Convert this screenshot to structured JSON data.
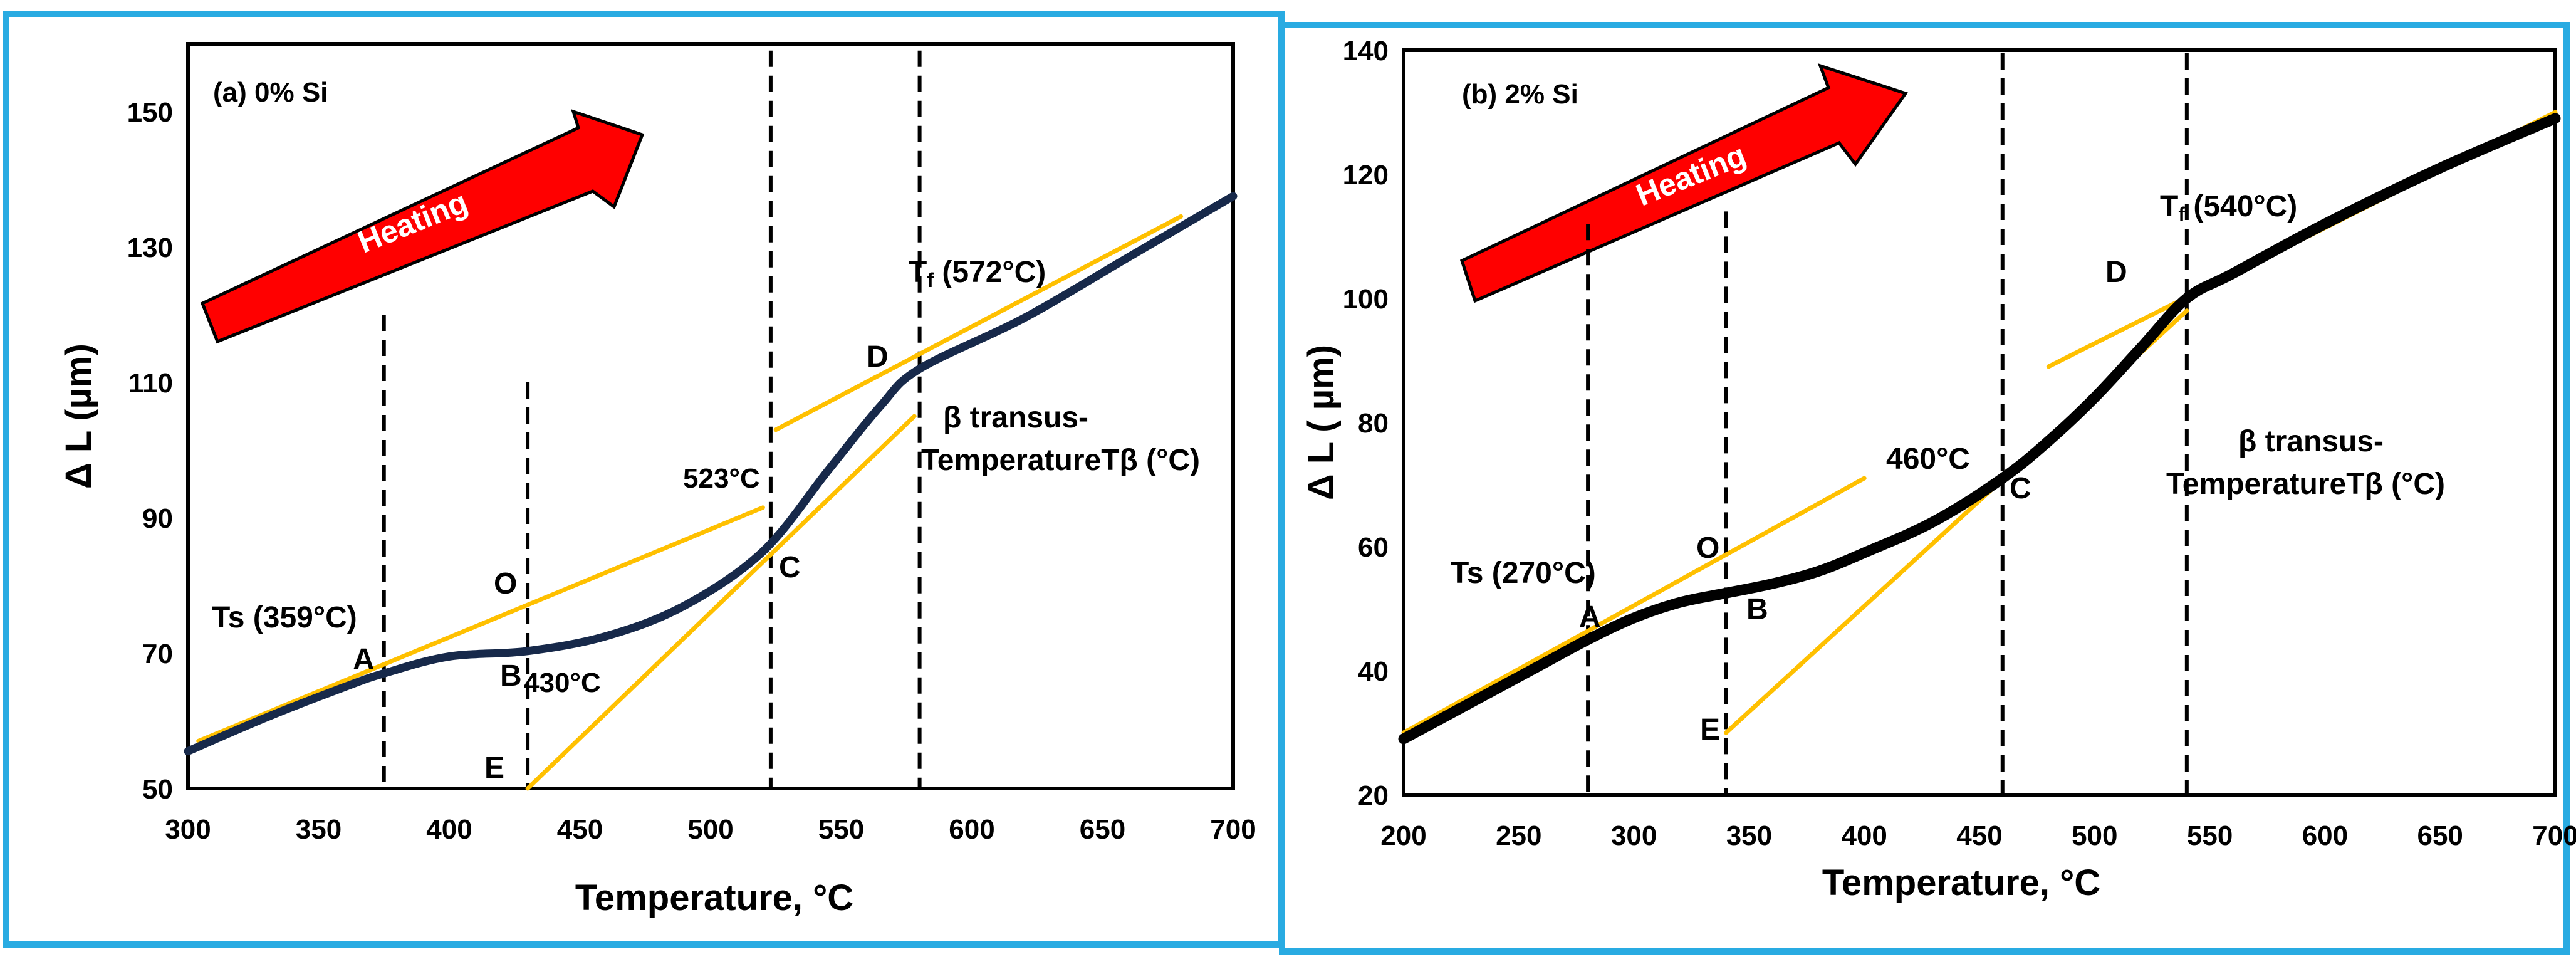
{
  "colors": {
    "frame": "#29abe2",
    "curve_a": "#17294a",
    "curve_b": "#000000",
    "tangent": "#ffc000",
    "arrow": "#ff0000"
  },
  "chart_data": [
    {
      "type": "line",
      "panel_label": "(a) 0% Si",
      "xlabel": "Temperature, °C",
      "ylabel": "Δ L (µm)",
      "xlim": [
        300,
        700
      ],
      "ylim": [
        50,
        160
      ],
      "xticks": [
        "300",
        "350",
        "400",
        "450",
        "500",
        "550",
        "600",
        "650",
        "700"
      ],
      "yticks": [
        "50",
        "70",
        "90",
        "110",
        "130",
        "150"
      ],
      "arrow_label": "Heating",
      "series": [
        {
          "name": "dilatation curve",
          "x": [
            300,
            330,
            360,
            375,
            400,
            430,
            460,
            490,
            520,
            545,
            565,
            580,
            620,
            660,
            700
          ],
          "y": [
            55.5,
            60.5,
            65,
            67,
            69.5,
            70.3,
            72.5,
            77,
            85,
            97,
            106.5,
            112,
            119.5,
            128.5,
            137.5
          ]
        }
      ],
      "tangents": [
        {
          "from": [
            304,
            57
          ],
          "to": [
            520,
            91.5
          ]
        },
        {
          "from": [
            430,
            50
          ],
          "to": [
            578,
            105
          ]
        },
        {
          "from": [
            525,
            103
          ],
          "to": [
            680,
            134.5
          ]
        }
      ],
      "vertical_lines": [
        375,
        430,
        523,
        580
      ],
      "points": [
        {
          "label": "A",
          "x": 375,
          "y": 67
        },
        {
          "label": "B",
          "x": 430,
          "y": 70
        },
        {
          "label": "C",
          "x": 523,
          "y": 85
        },
        {
          "label": "D",
          "x": 580,
          "y": 112
        },
        {
          "label": "E",
          "x": 430,
          "y": 50
        },
        {
          "label": "O",
          "x": 430,
          "y": 77
        }
      ],
      "annotations": {
        "ts_main": "Ts",
        "ts_value": "(359°C)",
        "tf_main": "T",
        "tf_sub": "f",
        "tf_value": "(572°C)",
        "b_temp": "430°C",
        "c_temp": "523°C",
        "beta_line1": "β transus-",
        "beta_line2": "TemperatureTβ (°C)"
      }
    },
    {
      "type": "line",
      "panel_label": "(b) 2% Si",
      "xlabel": "Temperature, °C",
      "ylabel": "Δ L ( µm)",
      "xlim": [
        200,
        700
      ],
      "ylim": [
        20,
        140
      ],
      "xticks": [
        "200",
        "250",
        "300",
        "350",
        "400",
        "450",
        "500",
        "550",
        "600",
        "650",
        "700"
      ],
      "yticks": [
        "20",
        "40",
        "60",
        "80",
        "100",
        "120",
        "140"
      ],
      "arrow_label": "Heating",
      "series": [
        {
          "name": "dilatation curve",
          "x": [
            200,
            230,
            260,
            280,
            300,
            320,
            340,
            360,
            380,
            400,
            430,
            460,
            480,
            500,
            520,
            540,
            560,
            600,
            650,
            700
          ],
          "y": [
            29,
            35,
            41,
            45,
            48.5,
            51,
            52.5,
            54,
            56,
            59,
            64,
            71,
            77,
            84,
            92,
            100,
            104,
            112,
            121,
            129
          ]
        }
      ],
      "tangents": [
        {
          "from": [
            200,
            30
          ],
          "to": [
            400,
            71
          ]
        },
        {
          "from": [
            340,
            30
          ],
          "to": [
            540,
            98
          ]
        },
        {
          "from": [
            480,
            89
          ],
          "to": [
            700,
            130
          ]
        }
      ],
      "vertical_lines": [
        280,
        340,
        460,
        540
      ],
      "points": [
        {
          "label": "A",
          "x": 280,
          "y": 45
        },
        {
          "label": "B",
          "x": 340,
          "y": 52
        },
        {
          "label": "C",
          "x": 460,
          "y": 71
        },
        {
          "label": "D",
          "x": 540,
          "y": 100
        },
        {
          "label": "E",
          "x": 340,
          "y": 30
        },
        {
          "label": "O",
          "x": 340,
          "y": 58
        }
      ],
      "annotations": {
        "ts_main": "Ts",
        "ts_value": "(270°C)",
        "tf_main": "T",
        "tf_sub": "f",
        "tf_value": "(540°C)",
        "c_temp": "460°C",
        "beta_line1": "β transus-",
        "beta_line2": "TemperatureTβ (°C)"
      }
    }
  ]
}
